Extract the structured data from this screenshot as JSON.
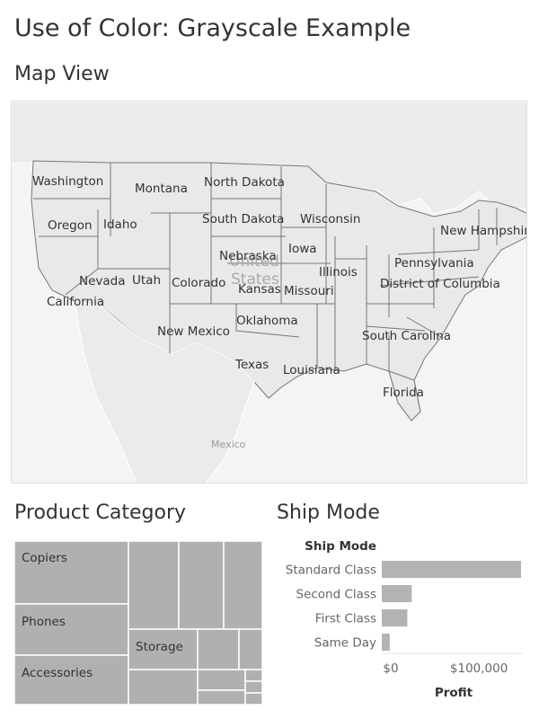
{
  "dashboard": {
    "title": "Use of Color: Grayscale Example"
  },
  "map_view": {
    "title": "Map View",
    "country_labels": {
      "usa_line1": "United",
      "usa_line2": "States",
      "mexico": "Mexico"
    },
    "states": [
      "Washington",
      "Montana",
      "North Dakota",
      "Oregon",
      "Idaho",
      "South Dakota",
      "Wisconsin",
      "New Hampshire",
      "Nebraska",
      "Iowa",
      "Pennsylvania",
      "Nevada",
      "Utah",
      "Colorado",
      "Kansas",
      "Illinois",
      "Missouri",
      "District of Columbia",
      "California",
      "Oklahoma",
      "New Mexico",
      "South Carolina",
      "Texas",
      "Louisiana",
      "Florida"
    ]
  },
  "product_category": {
    "title": "Product Category",
    "labels": [
      "Copiers",
      "Phones",
      "Accessories",
      "Storage"
    ]
  },
  "ship_mode": {
    "title": "Ship Mode",
    "colors": {
      "bar": "#b3b3b3"
    }
  },
  "chart_data": {
    "type": "bar",
    "orientation": "horizontal",
    "y_axis_title": "Ship Mode",
    "categories": [
      "Standard Class",
      "Second Class",
      "First Class",
      "Same Day"
    ],
    "values": [
      158000,
      34000,
      29000,
      9000
    ],
    "xlabel": "Profit",
    "xlim": [
      0,
      160000
    ],
    "x_ticks": [
      0,
      100000
    ],
    "x_tick_labels": [
      "$0",
      "$100,000"
    ],
    "grid": false
  }
}
